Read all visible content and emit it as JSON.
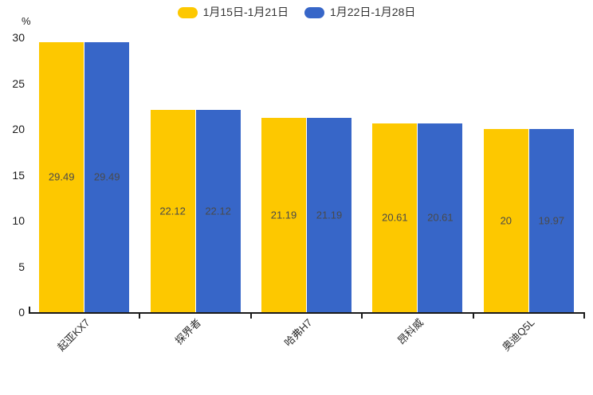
{
  "chart_data": {
    "type": "bar",
    "title": "",
    "categories": [
      "起亚KX7",
      "探界者",
      "哈弗H7",
      "昂科威",
      "奥迪Q5L"
    ],
    "series": [
      {
        "name": "1月15日-1月21日",
        "color": "#FDC800",
        "values": [
          29.49,
          22.12,
          21.19,
          20.61,
          20
        ]
      },
      {
        "name": "1月22日-1月28日",
        "color": "#3766C8",
        "values": [
          29.49,
          22.12,
          21.19,
          20.61,
          19.97
        ]
      }
    ],
    "xlabel": "",
    "ylabel": "%",
    "ylim": [
      0,
      30
    ],
    "yticks": [
      0,
      5,
      10,
      15,
      20,
      25,
      30
    ],
    "grid": false,
    "legend_position": "top",
    "value_labels_inside_bars": true,
    "value_label_color": "#4a4a4a",
    "axis_color": "#1a1a1a",
    "x_labels_rotated_degrees": 45
  }
}
